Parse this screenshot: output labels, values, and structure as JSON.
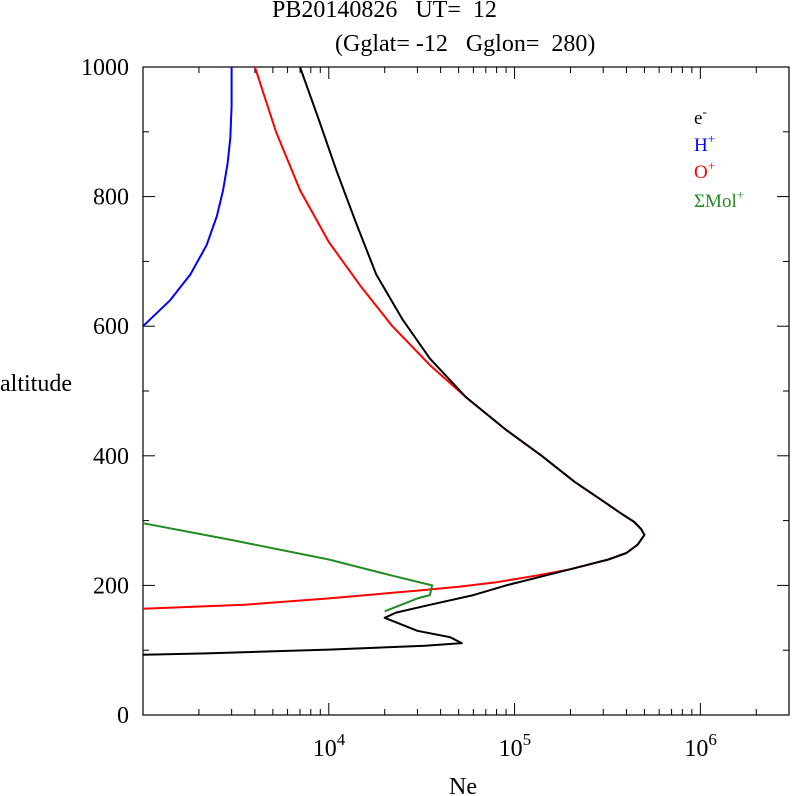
{
  "title": {
    "line1": "PB20140826   UT=  12",
    "line2": "(Gglat= -12   Gglon=  280)"
  },
  "chart_data": {
    "type": "line",
    "xlabel": "Ne",
    "ylabel": "altitude",
    "x_scale": "log",
    "xlim": [
      1000,
      3000000
    ],
    "ylim": [
      0,
      1000
    ],
    "y_ticks": [
      "0",
      "200",
      "400",
      "600",
      "800",
      "1000"
    ],
    "x_ticks": [
      {
        "value": 10000,
        "base": "10",
        "exp": "4"
      },
      {
        "value": 100000,
        "base": "10",
        "exp": "5"
      },
      {
        "value": 1000000,
        "base": "10",
        "exp": "6"
      }
    ],
    "legend_position": "top-right",
    "series": [
      {
        "name": "e",
        "sup": "-",
        "color": "#000000",
        "points": [
          [
            1000,
            93
          ],
          [
            2200,
            95
          ],
          [
            10000,
            101
          ],
          [
            33000,
            107
          ],
          [
            52000,
            111
          ],
          [
            45000,
            120
          ],
          [
            30000,
            130
          ],
          [
            20000,
            150
          ],
          [
            23000,
            158
          ],
          [
            35000,
            170
          ],
          [
            60000,
            185
          ],
          [
            90000,
            200
          ],
          [
            200000,
            225
          ],
          [
            320000,
            240
          ],
          [
            400000,
            250
          ],
          [
            460000,
            263
          ],
          [
            500000,
            278
          ],
          [
            480000,
            287
          ],
          [
            440000,
            298
          ],
          [
            370000,
            312
          ],
          [
            300000,
            330
          ],
          [
            210000,
            360
          ],
          [
            140000,
            400
          ],
          [
            90000,
            440
          ],
          [
            55000,
            490
          ],
          [
            35000,
            550
          ],
          [
            25000,
            610
          ],
          [
            18000,
            680
          ],
          [
            14000,
            760
          ],
          [
            11000,
            840
          ],
          [
            8800,
            920
          ],
          [
            7000,
            1000
          ]
        ]
      },
      {
        "name": "H",
        "sup": "+",
        "color": "#0000ff",
        "points": [
          [
            1000,
            600
          ],
          [
            1400,
            640
          ],
          [
            1800,
            680
          ],
          [
            2200,
            725
          ],
          [
            2500,
            770
          ],
          [
            2700,
            810
          ],
          [
            2850,
            850
          ],
          [
            2950,
            890
          ],
          [
            3000,
            940
          ],
          [
            3000,
            1000
          ]
        ]
      },
      {
        "name": "O",
        "sup": "+",
        "color": "#ff0000",
        "points": [
          [
            1000,
            164
          ],
          [
            3500,
            170
          ],
          [
            10000,
            180
          ],
          [
            30000,
            192
          ],
          [
            50000,
            198
          ],
          [
            80000,
            205
          ],
          [
            130000,
            215
          ],
          [
            200000,
            225
          ],
          [
            320000,
            240
          ],
          [
            400000,
            250
          ],
          [
            460000,
            263
          ],
          [
            500000,
            278
          ],
          [
            480000,
            287
          ],
          [
            440000,
            298
          ],
          [
            370000,
            312
          ],
          [
            300000,
            330
          ],
          [
            210000,
            360
          ],
          [
            140000,
            400
          ],
          [
            90000,
            440
          ],
          [
            55000,
            490
          ],
          [
            35000,
            540
          ],
          [
            22000,
            600
          ],
          [
            15000,
            660
          ],
          [
            10000,
            730
          ],
          [
            7000,
            810
          ],
          [
            5200,
            900
          ],
          [
            4000,
            1000
          ]
        ]
      },
      {
        "name": "ΣMol",
        "sup": "+",
        "color": "#228b22",
        "points": [
          [
            1000,
            296
          ],
          [
            3000,
            270
          ],
          [
            10000,
            240
          ],
          [
            22000,
            215
          ],
          [
            36000,
            200
          ],
          [
            35000,
            185
          ],
          [
            30000,
            180
          ],
          [
            20000,
            160
          ]
        ]
      }
    ]
  }
}
